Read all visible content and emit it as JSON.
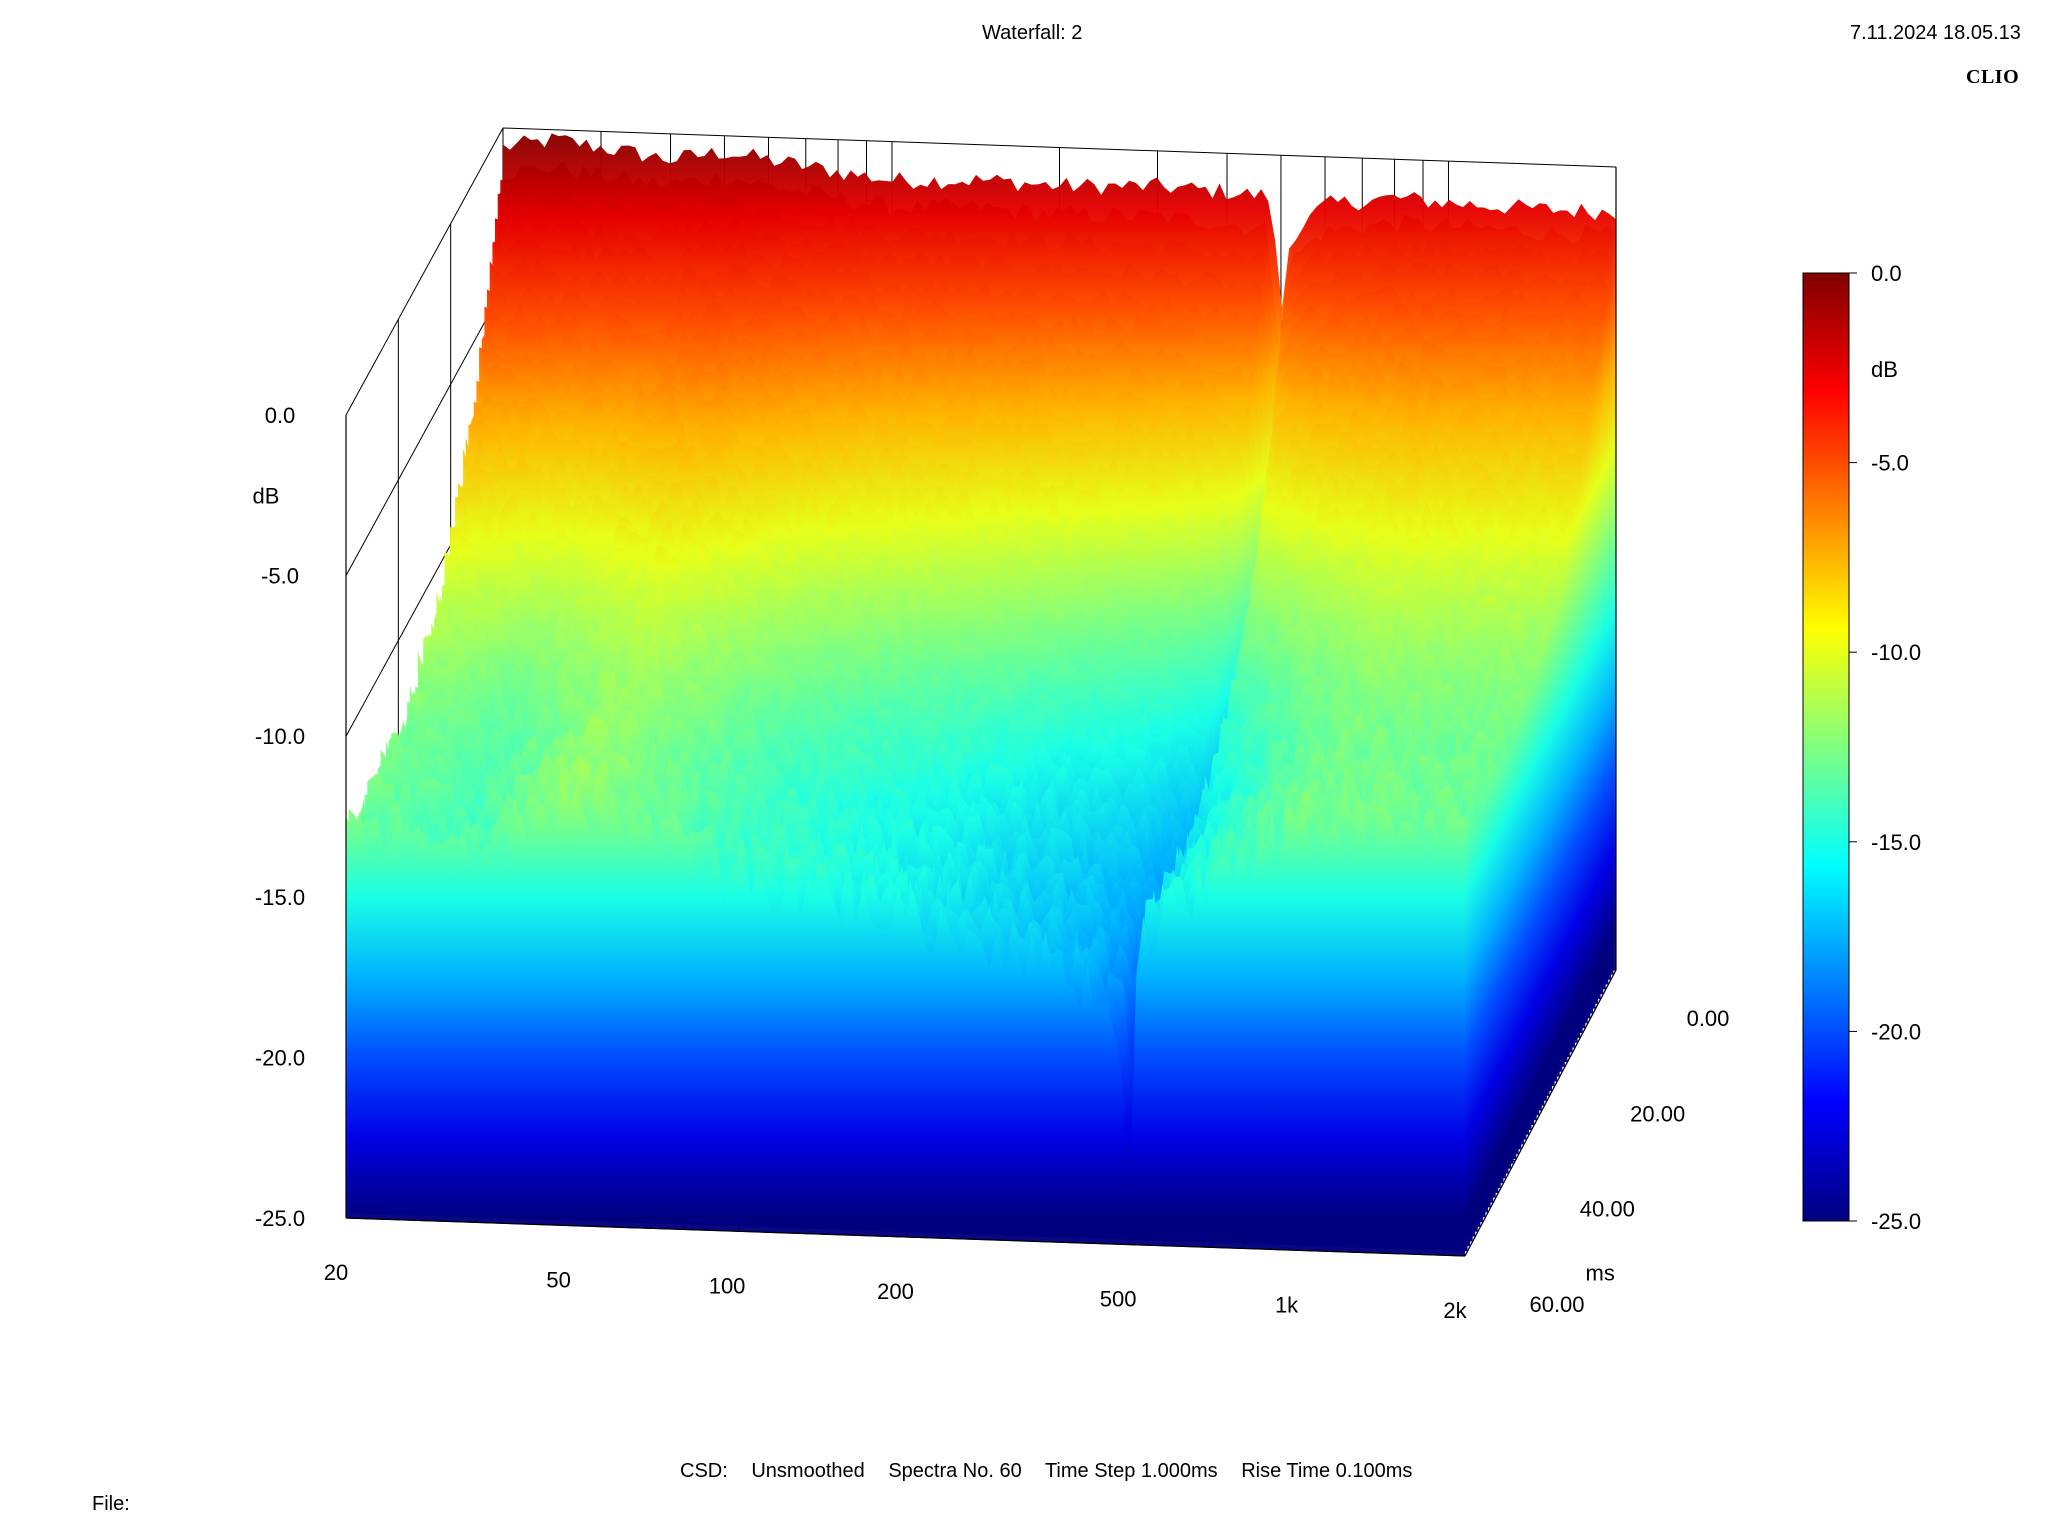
{
  "header": {
    "title": "Waterfall: 2",
    "datetime": "7.11.2024 18.05.13",
    "brand": "CLIO"
  },
  "footer": {
    "csd_label": "CSD:",
    "smoothing": "Unsmoothed",
    "spectra": "Spectra No. 60",
    "time_step": "Time Step 1.000ms",
    "rise_time": "Rise Time 0.100ms",
    "file_label": "File:"
  },
  "chart_data": {
    "type": "waterfall",
    "x_axis": {
      "scale": "log",
      "range": [
        20,
        2000
      ],
      "tick_values": [
        20,
        50,
        100,
        200,
        500,
        1000,
        2000
      ],
      "tick_labels": [
        "20",
        "50",
        "100",
        "200",
        "500",
        "1k",
        "2k"
      ],
      "grid_values": [
        20,
        30,
        40,
        50,
        60,
        70,
        80,
        90,
        100,
        200,
        300,
        400,
        500,
        600,
        700,
        800,
        900,
        1000,
        2000
      ]
    },
    "y_axis": {
      "label": "dB",
      "range": [
        -25,
        0
      ],
      "tick_values": [
        0,
        -5,
        -10,
        -15,
        -20,
        -25
      ],
      "tick_labels": [
        "0.0",
        "-5.0",
        "-10.0",
        "-15.0",
        "-20.0",
        "-25.0"
      ]
    },
    "z_axis": {
      "label": "ms",
      "range": [
        0,
        60
      ],
      "tick_values": [
        0,
        20,
        40,
        60
      ],
      "tick_labels": [
        "0.00",
        "20.00",
        "40.00",
        "60.00"
      ]
    },
    "colorbar": {
      "label": "dB",
      "range": [
        -25,
        0
      ],
      "tick_values": [
        0,
        -5,
        -10,
        -15,
        -20,
        -25
      ],
      "tick_labels": [
        "0.0",
        "-5.0",
        "-10.0",
        "-15.0",
        "-20.0",
        "-25.0"
      ],
      "colormap": [
        "#7f0000",
        "#ff0000",
        "#ff8000",
        "#ffff00",
        "#80ff80",
        "#00ffff",
        "#0080ff",
        "#0000ff",
        "#00007f"
      ]
    },
    "spectra_count": 60,
    "slice_interval_ms": 1.0,
    "initial_spectrum": {
      "x": [
        20,
        25,
        30,
        40,
        50,
        60,
        80,
        100,
        150,
        200,
        300,
        400,
        480,
        500,
        520,
        600,
        800,
        1000,
        1500,
        2000
      ],
      "y": [
        -0.6,
        -0.3,
        -0.5,
        -0.8,
        -0.5,
        -0.7,
        -1.0,
        -1.2,
        -1.1,
        -1.2,
        -1.1,
        -1.2,
        -1.3,
        -5.0,
        -2.5,
        -1.5,
        -1.2,
        -1.3,
        -1.4,
        -1.4
      ]
    },
    "decay_floor_at_60ms": {
      "x": [
        20,
        30,
        50,
        100,
        200,
        400,
        480,
        500,
        520,
        700,
        1000,
        2000
      ],
      "y": [
        -13.0,
        -14.0,
        -12.0,
        -14.0,
        -15.0,
        -16.5,
        -18.0,
        -24.0,
        -15.5,
        -13.5,
        -12.0,
        -12.0
      ]
    },
    "annotations": []
  }
}
